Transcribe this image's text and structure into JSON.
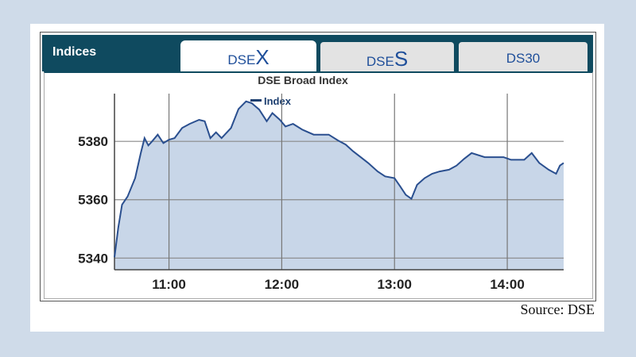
{
  "header": {
    "title": "Indices"
  },
  "tabs": [
    {
      "prefix": "DSE",
      "suffix": "X",
      "active": true
    },
    {
      "prefix": "DSE",
      "suffix": "S",
      "active": false
    },
    {
      "prefix": "",
      "suffix": "DS30",
      "active": false
    }
  ],
  "source": "Source: DSE",
  "colors": {
    "header": "#0f4a5f",
    "line": "#2a4f8f",
    "fill": "#c8d6e8",
    "tab_text": "#1f4f9a"
  },
  "chart_data": {
    "type": "area",
    "title": "DSE Broad Index",
    "xlabel": "",
    "ylabel": "",
    "legend": {
      "position": "top",
      "entries": [
        "Index"
      ]
    },
    "grid": true,
    "xlim": [
      "10:31",
      "14:30"
    ],
    "ylim": [
      5336,
      5398
    ],
    "xticks": [
      "11:00",
      "12:00",
      "13:00",
      "14:00"
    ],
    "yticks": [
      5340,
      5360,
      5380
    ],
    "series": [
      {
        "name": "Index",
        "x": [
          "10:31",
          "10:33",
          "10:35",
          "10:38",
          "10:42",
          "10:45",
          "10:47",
          "10:49",
          "10:51",
          "10:54",
          "10:57",
          "11:00",
          "11:03",
          "11:07",
          "11:11",
          "11:16",
          "11:19",
          "11:22",
          "11:25",
          "11:28",
          "11:33",
          "11:37",
          "11:41",
          "11:44",
          "11:48",
          "11:52",
          "11:55",
          "11:59",
          "12:02",
          "12:06",
          "12:11",
          "12:17",
          "12:21",
          "12:25",
          "12:30",
          "12:34",
          "12:38",
          "12:42",
          "12:46",
          "12:51",
          "12:55",
          "13:00",
          "13:03",
          "13:06",
          "13:09",
          "13:12",
          "13:16",
          "13:20",
          "13:24",
          "13:29",
          "13:33",
          "13:37",
          "13:41",
          "13:48",
          "13:54",
          "13:58",
          "14:02",
          "14:09",
          "14:13",
          "14:17",
          "14:22",
          "14:26",
          "14:28",
          "14:30"
        ],
        "values": [
          5340.3,
          5350.3,
          5358.3,
          5361.1,
          5367.4,
          5376,
          5381.1,
          5378.6,
          5380,
          5382.3,
          5379.4,
          5380.6,
          5381.1,
          5384.6,
          5386,
          5387.4,
          5386.9,
          5381.1,
          5383.1,
          5381.1,
          5384.6,
          5391.1,
          5393.7,
          5393.1,
          5390.9,
          5386.9,
          5389.7,
          5387.4,
          5385.1,
          5386,
          5384,
          5382.3,
          5382.3,
          5382.3,
          5380.3,
          5378.9,
          5376.6,
          5374.6,
          5372.6,
          5369.7,
          5368,
          5367.4,
          5364.6,
          5361.7,
          5360.3,
          5365.1,
          5367.4,
          5368.9,
          5369.7,
          5370.3,
          5371.7,
          5374,
          5376,
          5374.6,
          5374.6,
          5374.6,
          5373.7,
          5373.7,
          5376,
          5372.6,
          5370.3,
          5368.9,
          5371.7,
          5372.6
        ]
      }
    ]
  }
}
